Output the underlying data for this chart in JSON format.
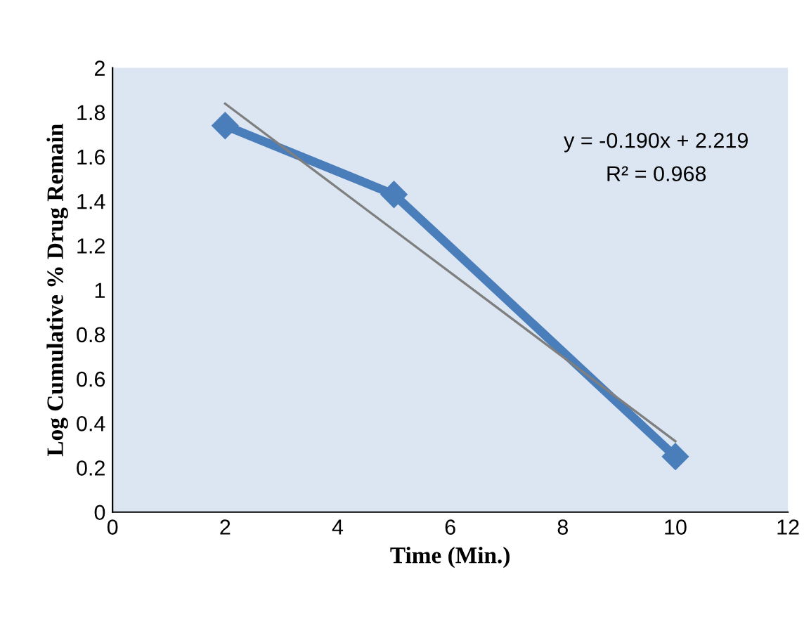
{
  "chart_data": {
    "type": "line",
    "xlabel": "Time (Min.)",
    "ylabel": "Log Cumulative % Drug Remain",
    "x": [
      2,
      5,
      10
    ],
    "series": [
      {
        "color": "#4a7ebb",
        "values": [
          1.74,
          1.43,
          0.25
        ],
        "marker": "diamond"
      },
      {
        "type": "line",
        "color": "#7f7f7f",
        "x": [
          2,
          10
        ],
        "values": [
          1.839,
          0.319
        ],
        "marker": "none"
      }
    ],
    "xlim": [
      0,
      12
    ],
    "xticks": [
      0,
      2,
      4,
      6,
      8,
      10,
      12
    ],
    "ylim": [
      0,
      2
    ],
    "yticks": [
      0,
      0.2,
      0.4,
      0.6,
      0.8,
      1,
      1.2,
      1.4,
      1.6,
      1.8,
      2
    ],
    "grid": false,
    "legend": false,
    "annotations": [
      "y = -0.190x + 2.219",
      "R² = 0.968"
    ]
  }
}
